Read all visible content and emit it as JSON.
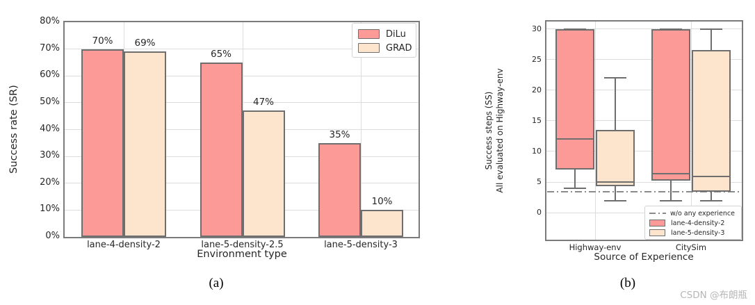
{
  "watermark": "CSDN @布朗瓶",
  "colors": {
    "dilu": "#fc9a98",
    "grad": "#fde5cd",
    "edge": "#6e6e6e",
    "grid": "#dcdcdc",
    "frame": "#7b7b7b",
    "baseline_gray": "#8a8a8a"
  },
  "chart_data": [
    {
      "type": "bar",
      "caption": "(a)",
      "xlabel": "Environment type",
      "ylabel": "Success rate (SR)",
      "categories": [
        "lane-4-density-2",
        "lane-5-density-2.5",
        "lane-5-density-3"
      ],
      "series": [
        {
          "name": "DiLu",
          "color_key": "dilu",
          "values": [
            70,
            65,
            35
          ],
          "labels": [
            "70%",
            "65%",
            "35%"
          ]
        },
        {
          "name": "GRAD",
          "color_key": "grad",
          "values": [
            69,
            47,
            10
          ],
          "labels": [
            "69%",
            "47%",
            "10%"
          ]
        }
      ],
      "ylim": [
        0,
        80
      ],
      "yticks": [
        "0%",
        "10%",
        "20%",
        "30%",
        "40%",
        "50%",
        "60%",
        "70%",
        "80%"
      ],
      "grid": true,
      "legend_position": "upper right"
    },
    {
      "type": "boxplot",
      "caption": "(b)",
      "xlabel": "Source of Experience",
      "ylabel_line1": "Success steps (SS)",
      "ylabel_line2": "All evaluated on Highway-env",
      "categories": [
        "Highway-env",
        "CitySim"
      ],
      "ylim": [
        -4.4,
        31.2
      ],
      "yticks": [
        0,
        5,
        10,
        15,
        20,
        25,
        30
      ],
      "grid": true,
      "baseline": {
        "value": 3.4,
        "label": "w/o any experience"
      },
      "series": [
        {
          "name": "lane-4-density-2",
          "color_key": "dilu",
          "boxes": [
            {
              "category": "Highway-env",
              "q1": 7,
              "median": 12,
              "q3": 30,
              "whisker_low": 4,
              "whisker_high": 30
            },
            {
              "category": "CitySim",
              "q1": 5.2,
              "median": 6.4,
              "q3": 30,
              "whisker_low": 2,
              "whisker_high": 30
            }
          ]
        },
        {
          "name": "lane-5-density-3",
          "color_key": "grad",
          "boxes": [
            {
              "category": "Highway-env",
              "q1": 4.3,
              "median": 5,
              "q3": 13.5,
              "whisker_low": 2,
              "whisker_high": 22
            },
            {
              "category": "CitySim",
              "q1": 3.4,
              "median": 5.9,
              "q3": 26.5,
              "whisker_low": 2,
              "whisker_high": 30
            }
          ]
        }
      ],
      "legend_position": "lower right",
      "legend": [
        "w/o any experience",
        "lane-4-density-2",
        "lane-5-density-3"
      ]
    }
  ]
}
